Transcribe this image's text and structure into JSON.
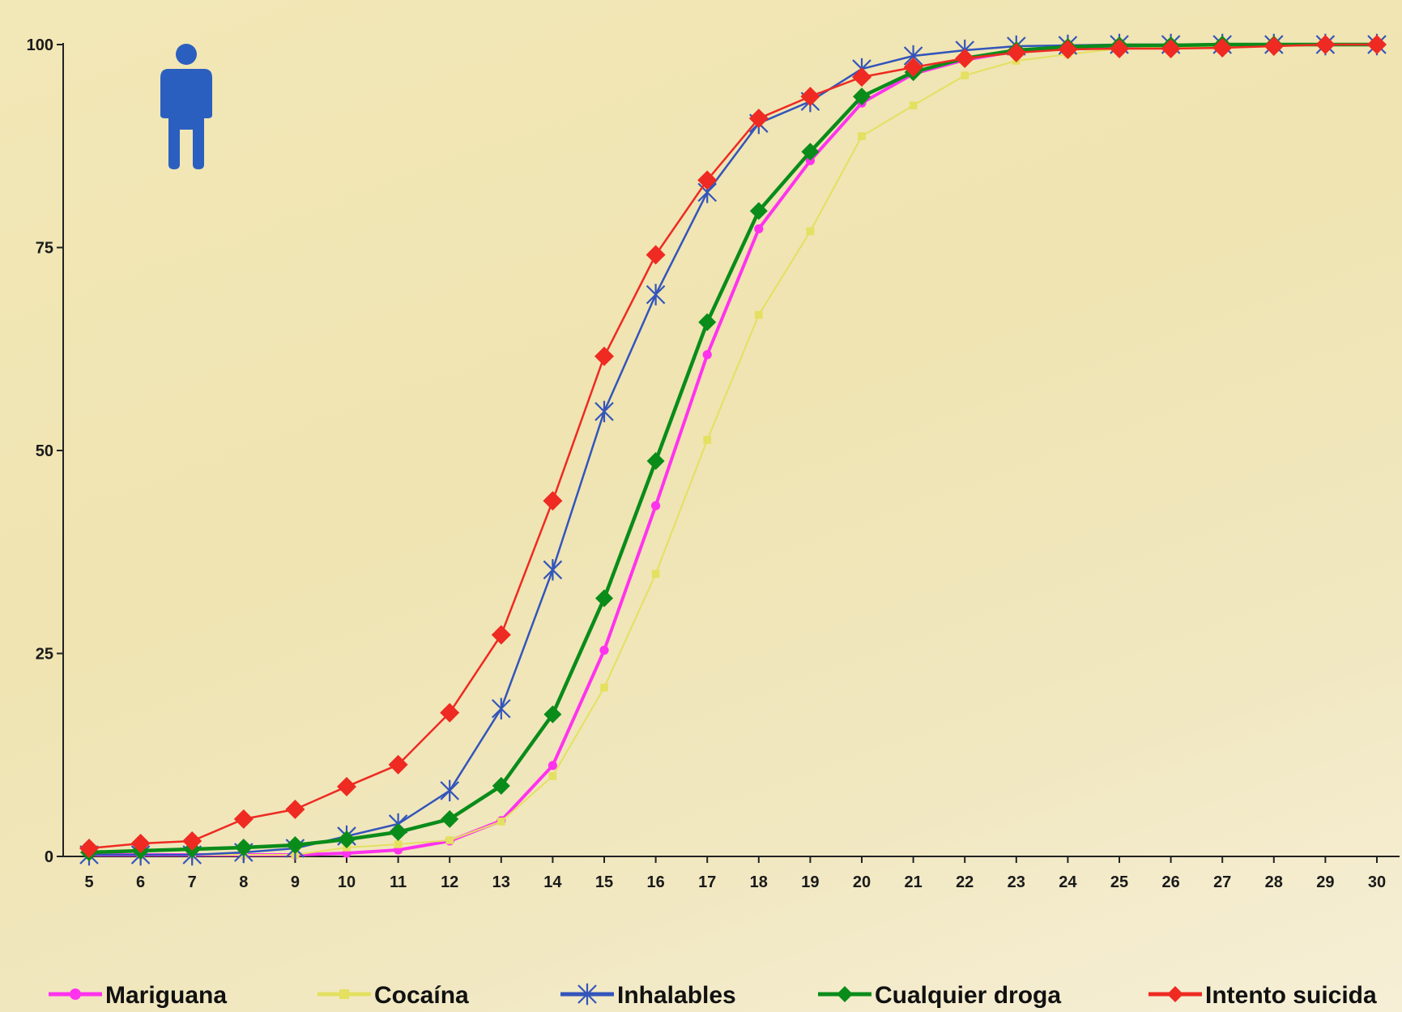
{
  "chart_data": {
    "type": "line",
    "title": "",
    "xlabel": "",
    "ylabel": "",
    "x": [
      5,
      6,
      7,
      8,
      9,
      10,
      11,
      12,
      13,
      14,
      15,
      16,
      17,
      18,
      19,
      20,
      21,
      22,
      23,
      24,
      25,
      26,
      27,
      28,
      29,
      30
    ],
    "xlim": [
      5,
      30
    ],
    "ylim": [
      0,
      100
    ],
    "y_ticks": [
      0,
      25,
      50,
      75,
      100
    ],
    "grid": false,
    "legend": "bottom",
    "series": [
      {
        "name": "Mariguana",
        "color": "#ff33ee",
        "marker": "circle",
        "values": [
          0.2,
          0.2,
          0.2,
          0.2,
          0.2,
          0.4,
          0.8,
          1.9,
          4.4,
          11.2,
          25.4,
          43.2,
          61.8,
          77.3,
          85.7,
          92.8,
          96.4,
          98.1,
          99.2,
          99.6,
          99.8,
          99.9,
          100,
          100,
          100,
          100
        ]
      },
      {
        "name": "Cocaína",
        "color": "#e4e060",
        "marker": "square",
        "values": [
          0.2,
          0.2,
          0.2,
          0.2,
          0.2,
          1.1,
          1.5,
          2.0,
          4.3,
          9.9,
          20.8,
          34.8,
          51.3,
          66.7,
          77.0,
          88.7,
          92.5,
          96.2,
          98.0,
          98.8,
          99.5,
          99.7,
          99.8,
          99.9,
          100,
          100
        ]
      },
      {
        "name": "Inhalables",
        "color": "#3355bb",
        "marker": "asterisk",
        "values": [
          0.2,
          0.2,
          0.2,
          0.5,
          1.0,
          2.5,
          4.0,
          8.1,
          18.2,
          35.3,
          54.8,
          69.2,
          81.8,
          90.3,
          93.0,
          97.0,
          98.6,
          99.3,
          99.8,
          99.9,
          100,
          100,
          100,
          100,
          100,
          100
        ]
      },
      {
        "name": "Cualquier droga",
        "color": "#0a8c1a",
        "marker": "diamond",
        "values": [
          0.5,
          0.7,
          0.9,
          1.1,
          1.4,
          2.1,
          3.0,
          4.6,
          8.7,
          17.5,
          31.8,
          48.7,
          65.8,
          79.5,
          86.8,
          93.6,
          96.6,
          98.3,
          99.3,
          99.7,
          99.9,
          99.9,
          100,
          100,
          100,
          100
        ]
      },
      {
        "name": "Intento suicida",
        "color": "#ee2a22",
        "marker": "diamond",
        "values": [
          1.0,
          1.6,
          1.9,
          4.6,
          5.8,
          8.6,
          11.3,
          17.7,
          27.3,
          43.8,
          61.6,
          74.1,
          83.3,
          90.9,
          93.6,
          96.0,
          97.2,
          98.3,
          99.0,
          99.4,
          99.5,
          99.5,
          99.6,
          99.8,
          100,
          100
        ]
      }
    ],
    "icon": {
      "name": "male-person-icon",
      "color": "#2b5fbf"
    }
  }
}
